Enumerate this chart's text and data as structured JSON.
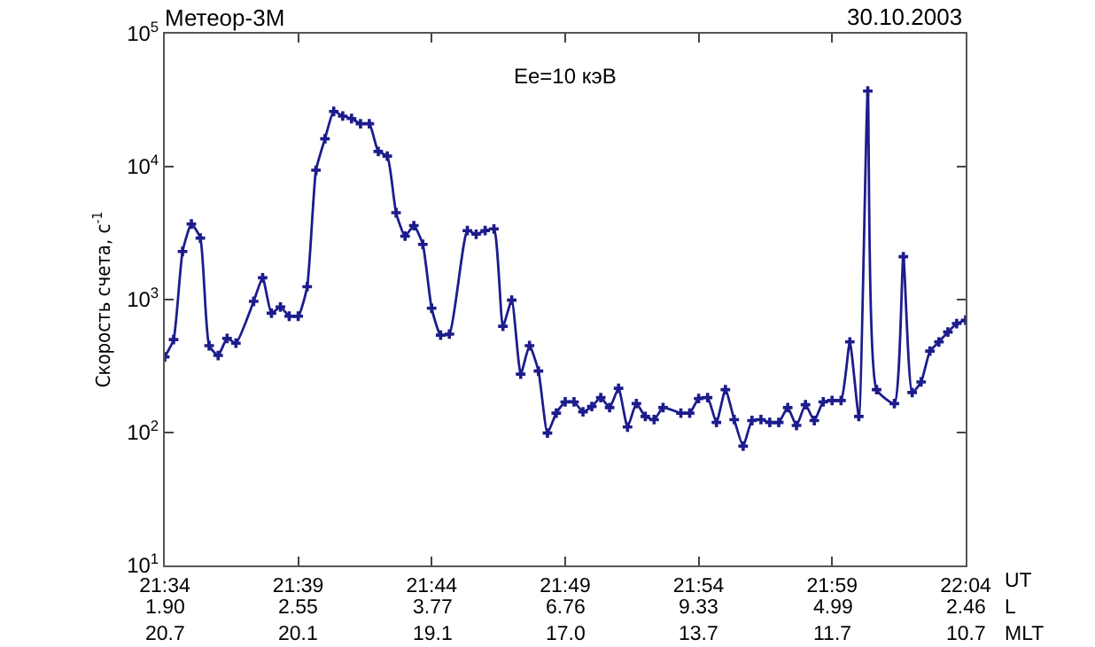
{
  "chart_data": {
    "type": "line",
    "title": "Метеор-3М",
    "subtitle": "30.10.2003",
    "ylabel": "Скорость счета, с$^{-1}$",
    "xlabel": "UT",
    "annotations": [
      "Ee=10 кэВ",
      "L",
      "1.90",
      "2.55",
      "3.77",
      "6.76",
      "9.33",
      "4.99",
      "2.46",
      "MLT",
      "20.7",
      "20.1",
      "19.1",
      "17.0",
      "13.7",
      "11.7",
      "10.7"
    ],
    "x": [
      21.5667,
      21.5722,
      21.5778,
      21.5833,
      21.5889,
      21.5944,
      21.6,
      21.6056,
      21.6111,
      21.6222,
      21.6278,
      21.6333,
      21.6389,
      21.6444,
      21.65,
      21.6556,
      21.6611,
      21.6667,
      21.6722,
      21.6778,
      21.6833,
      21.6889,
      21.6944,
      21.7,
      21.7056,
      21.7111,
      21.7167,
      21.7222,
      21.7278,
      21.7333,
      21.7389,
      21.7444,
      21.7556,
      21.7611,
      21.7667,
      21.7722,
      21.7778,
      21.7833,
      21.7889,
      21.7944,
      21.8,
      21.8056,
      21.8111,
      21.8167,
      21.8222,
      21.8278,
      21.8333,
      21.8389,
      21.8444,
      21.85,
      21.8556,
      21.8611,
      21.8667,
      21.8722,
      21.8778,
      21.8889,
      21.8944,
      21.9,
      21.9056,
      21.9111,
      21.9167,
      21.9222,
      21.9278,
      21.9333,
      21.9389,
      21.9444,
      21.95,
      21.9556,
      21.9611,
      21.9667,
      21.9722,
      21.9778,
      21.9833,
      21.9889,
      21.9944,
      22.0,
      22.0056,
      22.0111,
      22.0222,
      22.0278,
      22.0333,
      22.0389,
      22.0444,
      22.05,
      22.0556,
      22.0611,
      22.0667
    ],
    "series": [
      {
        "color": "#1c1c8c",
        "values": [
          370,
          500,
          2300,
          3700,
          2900,
          450,
          380,
          510,
          470,
          970,
          1460,
          790,
          880,
          750,
          750,
          1250,
          9400,
          16200,
          26000,
          24000,
          23000,
          21000,
          21000,
          13000,
          12000,
          4500,
          3000,
          3600,
          2600,
          860,
          540,
          550,
          3300,
          3100,
          3300,
          3400,
          630,
          990,
          275,
          450,
          290,
          99,
          140,
          170,
          170,
          143,
          157,
          183,
          154,
          215,
          110,
          165,
          132,
          125,
          154,
          140,
          140,
          180,
          183,
          119,
          210,
          125,
          79,
          123,
          125,
          119,
          119,
          154,
          113,
          162,
          123,
          170,
          174,
          174,
          480,
          132,
          37000,
          210,
          165,
          2100,
          200,
          240,
          410,
          480,
          570,
          660,
          700
        ]
      }
    ],
    "log": "y",
    "marker": "cross",
    "line_style": "solid",
    "grid": false,
    "xlim": [
      21.5667,
      22.0667
    ],
    "xticks": [
      {
        "value": 21.5667,
        "label": "21:34"
      },
      {
        "value": 21.65,
        "label": "21:39"
      },
      {
        "value": 21.7333,
        "label": "21:44"
      },
      {
        "value": 21.8167,
        "label": "21:49"
      },
      {
        "value": 21.9,
        "label": "21:54"
      },
      {
        "value": 21.9833,
        "label": "21:59"
      },
      {
        "value": 22.0667,
        "label": "22:04"
      }
    ],
    "ylim": [
      10,
      100000
    ],
    "yticks": [
      {
        "value": 10,
        "label": "10$^{1}$"
      },
      {
        "value": 100,
        "label": "10$^{2}$"
      },
      {
        "value": 1000,
        "label": "10$^{3}$"
      },
      {
        "value": 10000,
        "label": "10$^{4}$"
      },
      {
        "value": 100000,
        "label": "10$^{5}$"
      }
    ]
  }
}
